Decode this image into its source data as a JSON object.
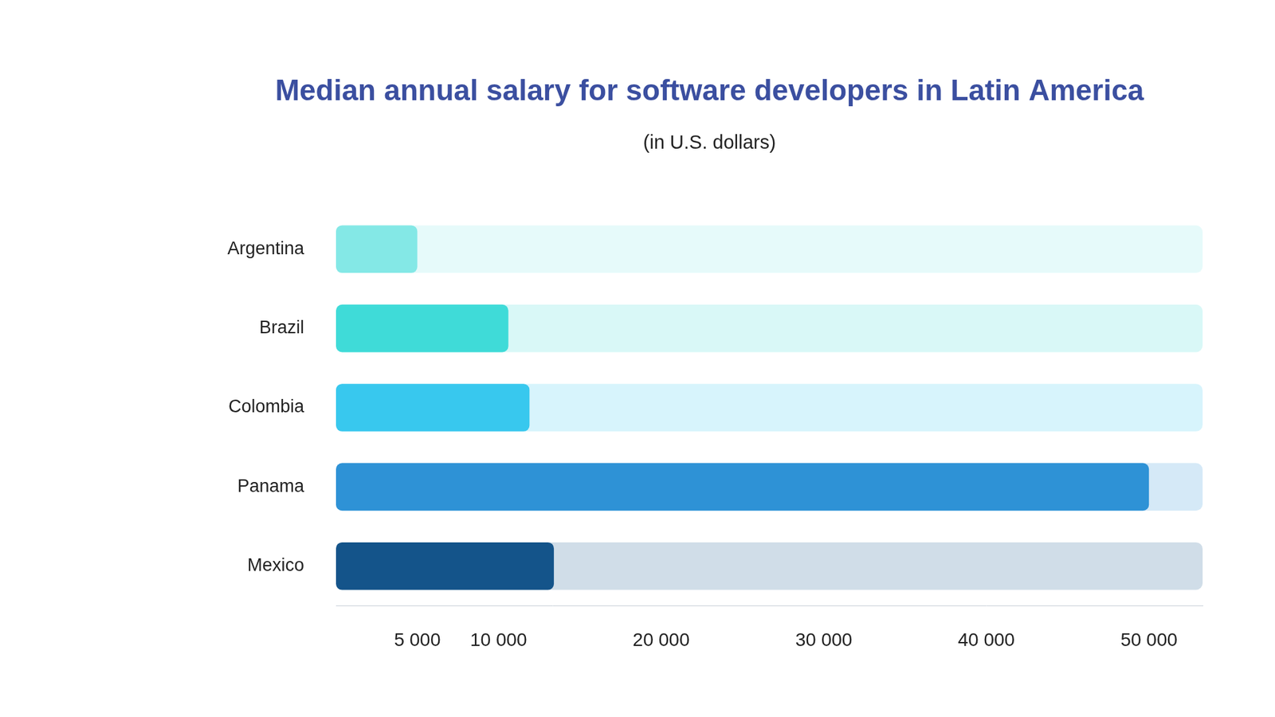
{
  "chart_data": {
    "type": "bar",
    "orientation": "horizontal",
    "title": "Median annual salary for software developers in Latin America",
    "subtitle": "(in U.S. dollars)",
    "categories": [
      "Argentina",
      "Brazil",
      "Colombia",
      "Panama",
      "Mexico"
    ],
    "values": [
      5000,
      10600,
      11900,
      50000,
      13400
    ],
    "colors": [
      "#84e8e6",
      "#3fdbd8",
      "#38c8ee",
      "#2e92d6",
      "#14548a"
    ],
    "xlim": [
      0,
      53300
    ],
    "xticks": [
      {
        "value": 5000,
        "label": "5 000"
      },
      {
        "value": 10000,
        "label": "10 000"
      },
      {
        "value": 20000,
        "label": "20 000"
      },
      {
        "value": 30000,
        "label": "30 000"
      },
      {
        "value": 40000,
        "label": "40 000"
      },
      {
        "value": 50000,
        "label": "50 000"
      }
    ],
    "grid": false
  }
}
